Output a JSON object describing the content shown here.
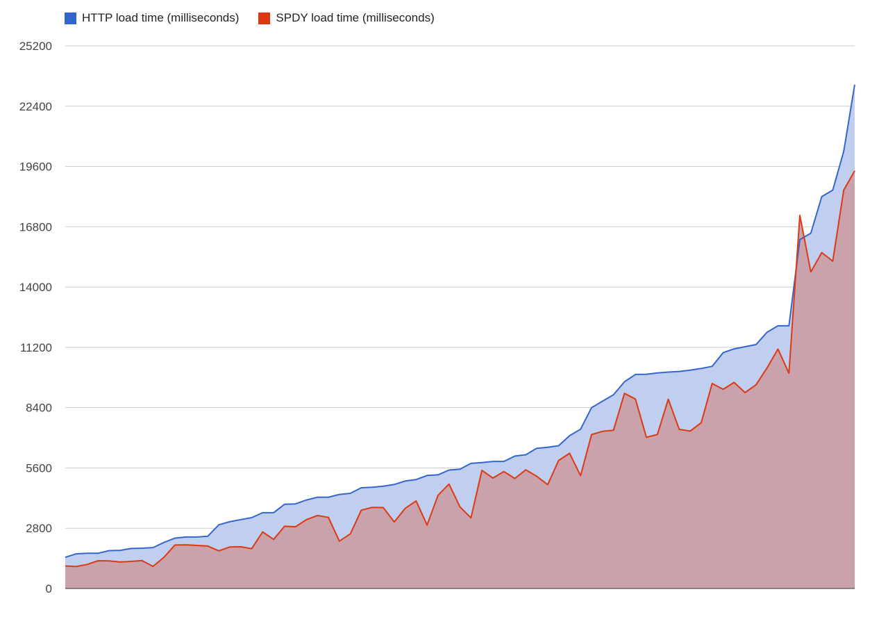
{
  "chart_data": {
    "type": "area",
    "legend_position": "top-left",
    "grid": true,
    "ylim": [
      0,
      25200
    ],
    "yticks": [
      "0",
      "2800",
      "5600",
      "8400",
      "11200",
      "14000",
      "16800",
      "19600",
      "22400",
      "25200"
    ],
    "series": [
      {
        "name": "HTTP load time (milliseconds)",
        "color": "#3366cc",
        "fill": "#c0cff0",
        "values": [
          1450,
          1610,
          1640,
          1640,
          1760,
          1770,
          1860,
          1870,
          1900,
          2140,
          2340,
          2390,
          2390,
          2430,
          2960,
          3100,
          3200,
          3290,
          3520,
          3520,
          3910,
          3930,
          4110,
          4240,
          4240,
          4370,
          4420,
          4680,
          4700,
          4750,
          4830,
          4990,
          5060,
          5250,
          5280,
          5500,
          5540,
          5810,
          5850,
          5900,
          5900,
          6150,
          6210,
          6510,
          6560,
          6630,
          7100,
          7400,
          8400,
          8700,
          9000,
          9600,
          9940,
          9950,
          10010,
          10050,
          10080,
          10140,
          10220,
          10320,
          10950,
          11130,
          11230,
          11330,
          11900,
          12200,
          12200,
          16200,
          16500,
          18200,
          18500,
          20300,
          23400
        ]
      },
      {
        "name": "SPDY load time (milliseconds)",
        "color": "#dc3912",
        "fill": "#c9a2ac",
        "values": [
          1050,
          1020,
          1120,
          1290,
          1280,
          1230,
          1260,
          1300,
          1030,
          1450,
          2020,
          2030,
          2000,
          1970,
          1750,
          1930,
          1940,
          1850,
          2630,
          2280,
          2890,
          2870,
          3200,
          3390,
          3300,
          2200,
          2540,
          3640,
          3770,
          3760,
          3090,
          3720,
          4070,
          2950,
          4330,
          4850,
          3790,
          3280,
          5490,
          5130,
          5430,
          5110,
          5510,
          5210,
          4820,
          5950,
          6280,
          5240,
          7150,
          7300,
          7350,
          9060,
          8800,
          7020,
          7150,
          8790,
          7390,
          7310,
          7700,
          9520,
          9250,
          9570,
          9100,
          9460,
          10240,
          11120,
          10000,
          17330,
          14700,
          15600,
          15200,
          18500,
          19400
        ]
      }
    ]
  }
}
